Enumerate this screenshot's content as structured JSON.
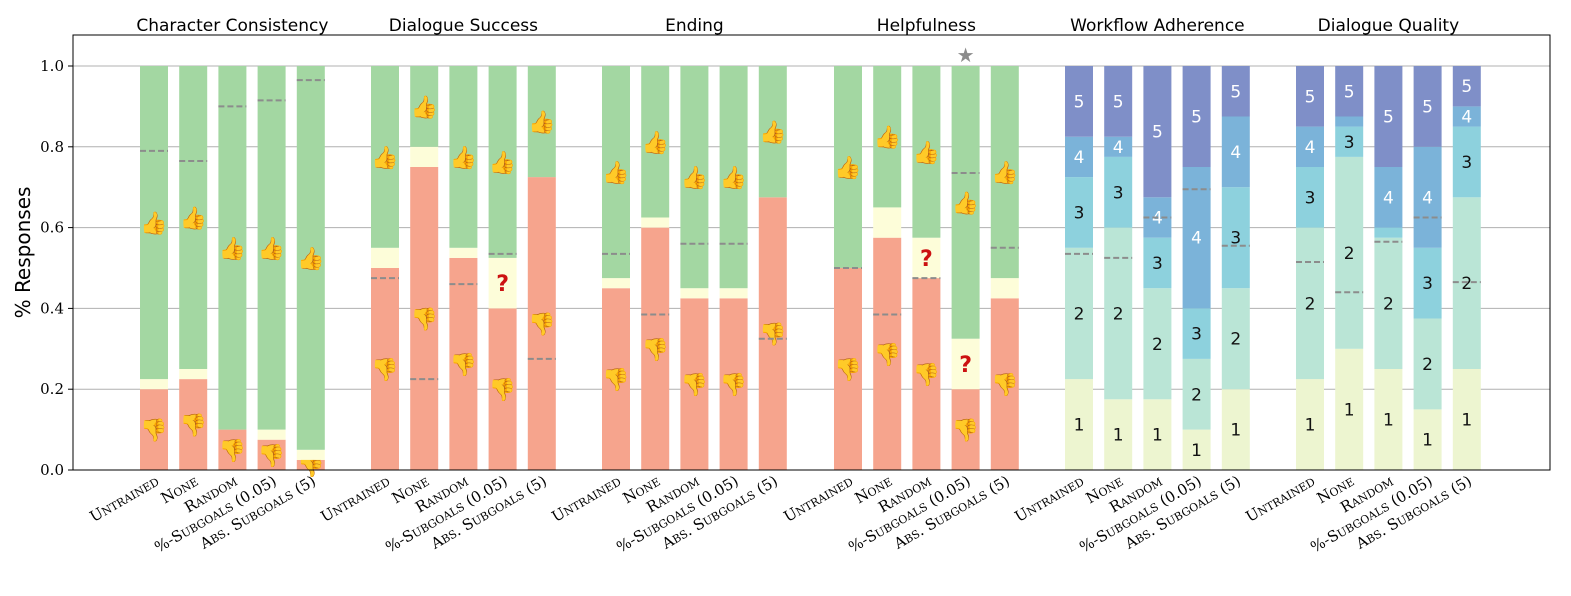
{
  "chart_data": {
    "type": "bar",
    "stacked": true,
    "ylabel": "% Responses",
    "ylim": [
      0,
      1.07
    ],
    "yticks": [
      "0.0",
      "0.2",
      "0.4",
      "0.6",
      "0.8",
      "1.0"
    ],
    "grid": "horizontal",
    "categories": [
      "Untrained",
      "None",
      "Random",
      "%-Subgoals (0.05)",
      "Abs. Subgoals (5)"
    ],
    "colors": {
      "thumbs_down": "#f6a48d",
      "unsure": "#fdfdd9",
      "thumbs_up": "#a3d7a2",
      "score_1": "#edf5d0",
      "score_2": "#bae5d6",
      "score_3": "#8dd1dd",
      "score_4": "#7bb3d9",
      "score_5": "#7f8fc8",
      "mean_line": "#8c8c8c",
      "star": "#8c8c8c",
      "question": "#cc1111",
      "thumb": "#f4b02a"
    },
    "marker_symbols": {
      "thumb_up": "👍",
      "thumb_down": "👎",
      "unsure": "?",
      "star": "★"
    },
    "panels": [
      {
        "title": "Character Consistency",
        "kind": "thumbs",
        "series": [
          {
            "name": "thumbs_down",
            "values": [
              0.2,
              0.225,
              0.1,
              0.075,
              0.025
            ]
          },
          {
            "name": "unsure",
            "values": [
              0.025,
              0.025,
              0.0,
              0.025,
              0.025
            ]
          },
          {
            "name": "thumbs_up",
            "values": [
              0.775,
              0.75,
              0.9,
              0.9,
              0.95
            ]
          }
        ],
        "mean": [
          0.79,
          0.765,
          0.9,
          0.915,
          0.965
        ],
        "star": null
      },
      {
        "title": "Dialogue Success",
        "kind": "thumbs",
        "series": [
          {
            "name": "thumbs_down",
            "values": [
              0.5,
              0.75,
              0.525,
              0.4,
              0.725
            ]
          },
          {
            "name": "unsure",
            "values": [
              0.05,
              0.05,
              0.025,
              0.125,
              0.0
            ]
          },
          {
            "name": "thumbs_up",
            "values": [
              0.45,
              0.2,
              0.45,
              0.475,
              0.275
            ]
          }
        ],
        "mean": [
          0.475,
          0.225,
          0.46,
          0.535,
          0.275
        ],
        "star": null
      },
      {
        "title": "Ending",
        "kind": "thumbs",
        "series": [
          {
            "name": "thumbs_down",
            "values": [
              0.45,
              0.6,
              0.425,
              0.425,
              0.675
            ]
          },
          {
            "name": "unsure",
            "values": [
              0.025,
              0.025,
              0.025,
              0.025,
              0.0
            ]
          },
          {
            "name": "thumbs_up",
            "values": [
              0.525,
              0.375,
              0.55,
              0.55,
              0.325
            ]
          }
        ],
        "mean": [
          0.535,
          0.385,
          0.56,
          0.56,
          0.325
        ],
        "star": null
      },
      {
        "title": "Helpfulness",
        "kind": "thumbs",
        "series": [
          {
            "name": "thumbs_down",
            "values": [
              0.5,
              0.575,
              0.475,
              0.2,
              0.425
            ]
          },
          {
            "name": "unsure",
            "values": [
              0.0,
              0.075,
              0.1,
              0.125,
              0.05
            ]
          },
          {
            "name": "thumbs_up",
            "values": [
              0.5,
              0.35,
              0.425,
              0.675,
              0.525
            ]
          }
        ],
        "mean": [
          0.5,
          0.385,
          0.475,
          0.735,
          0.55
        ],
        "star": 3
      },
      {
        "title": "Workflow Adherence",
        "kind": "likert",
        "series": [
          {
            "name": "1",
            "values": [
              0.225,
              0.175,
              0.175,
              0.1,
              0.2
            ]
          },
          {
            "name": "2",
            "values": [
              0.325,
              0.425,
              0.275,
              0.175,
              0.25
            ]
          },
          {
            "name": "3",
            "values": [
              0.175,
              0.175,
              0.125,
              0.125,
              0.25
            ]
          },
          {
            "name": "4",
            "values": [
              0.1,
              0.05,
              0.1,
              0.35,
              0.175
            ]
          },
          {
            "name": "5",
            "values": [
              0.175,
              0.175,
              0.325,
              0.25,
              0.125
            ]
          }
        ],
        "mean": [
          0.535,
          0.525,
          0.625,
          0.695,
          0.555
        ],
        "star": null
      },
      {
        "title": "Dialogue Quality",
        "kind": "likert",
        "series": [
          {
            "name": "1",
            "values": [
              0.225,
              0.3,
              0.25,
              0.15,
              0.25
            ]
          },
          {
            "name": "2",
            "values": [
              0.375,
              0.475,
              0.325,
              0.225,
              0.425
            ]
          },
          {
            "name": "3",
            "values": [
              0.15,
              0.075,
              0.025,
              0.175,
              0.175
            ]
          },
          {
            "name": "4",
            "values": [
              0.1,
              0.025,
              0.15,
              0.25,
              0.05
            ]
          },
          {
            "name": "5",
            "values": [
              0.15,
              0.125,
              0.25,
              0.2,
              0.1
            ]
          }
        ],
        "mean": [
          0.515,
          0.44,
          0.565,
          0.625,
          0.465
        ],
        "star": null
      }
    ]
  }
}
